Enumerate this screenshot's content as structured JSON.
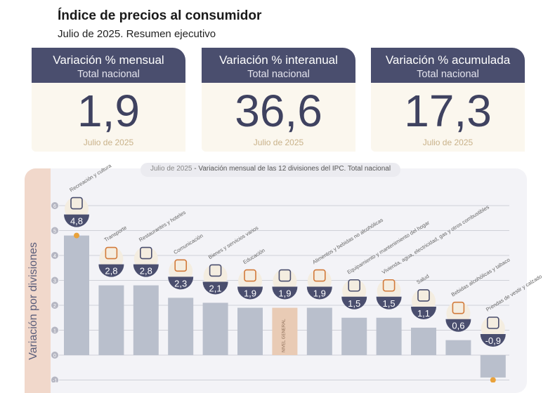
{
  "header": {
    "title": "Índice de precios al consumidor",
    "subtitle": "Julio de 2025. Resumen ejecutivo"
  },
  "cards": [
    {
      "title": "Variación % mensual",
      "scope": "Total nacional",
      "value": "1,9",
      "period": "Julio de 2025"
    },
    {
      "title": "Variación % interanual",
      "scope": "Total nacional",
      "value": "36,6",
      "period": "Julio de 2025"
    },
    {
      "title": "Variación % acumulada",
      "scope": "Total nacional",
      "value": "17,3",
      "period": "Julio de 2025"
    }
  ],
  "colors": {
    "navy": "#4a4e6e",
    "bar": "#b9bfcc",
    "general": "#e9cbb5",
    "accent": "#e9a23b",
    "strip": "#f1d8cb"
  },
  "chart_data": {
    "type": "bar",
    "title_period": "Julio de 2025",
    "title": "Variación mensual de las 12 divisiones del IPC. Total nacional",
    "ylabel": "Variación por divisiones",
    "ylim": [
      -1,
      6
    ],
    "yticks": [
      "-1",
      "0",
      "1",
      "2",
      "3",
      "4",
      "5",
      "6"
    ],
    "grid": true,
    "categories": [
      "Recreación y cultura",
      "Transporte",
      "Restaurantes y hoteles",
      "Comunicación",
      "Bienes y servicios varios",
      "Educación",
      "NIVEL GENERAL",
      "Alimentos y bebidas no alcohólicas",
      "Equipamiento y mantenimiento del hogar",
      "Vivienda, agua, electricidad, gas y otros combustibles",
      "Salud",
      "Bebidas alcohólicas y tabaco",
      "Prendas de vestir y calzado"
    ],
    "values": [
      4.8,
      2.8,
      2.8,
      2.3,
      2.1,
      1.9,
      1.9,
      1.9,
      1.5,
      1.5,
      1.1,
      0.6,
      -0.9
    ],
    "labels": [
      "4,8",
      "2,8",
      "2,8",
      "2,3",
      "2,1",
      "1,9",
      "1,9",
      "1,9",
      "1,5",
      "1,5",
      "1,1",
      "0,6",
      "-0,9"
    ],
    "icons": [
      "umbrella-icon",
      "car-icon",
      "plate-icon",
      "phone-icon",
      "comb-icon",
      "notebook-icon",
      "basket-icon",
      "chicken-icon",
      "toaster-icon",
      "bulb-icon",
      "first-aid-icon",
      "bottle-icon",
      "shirt-icon"
    ]
  }
}
